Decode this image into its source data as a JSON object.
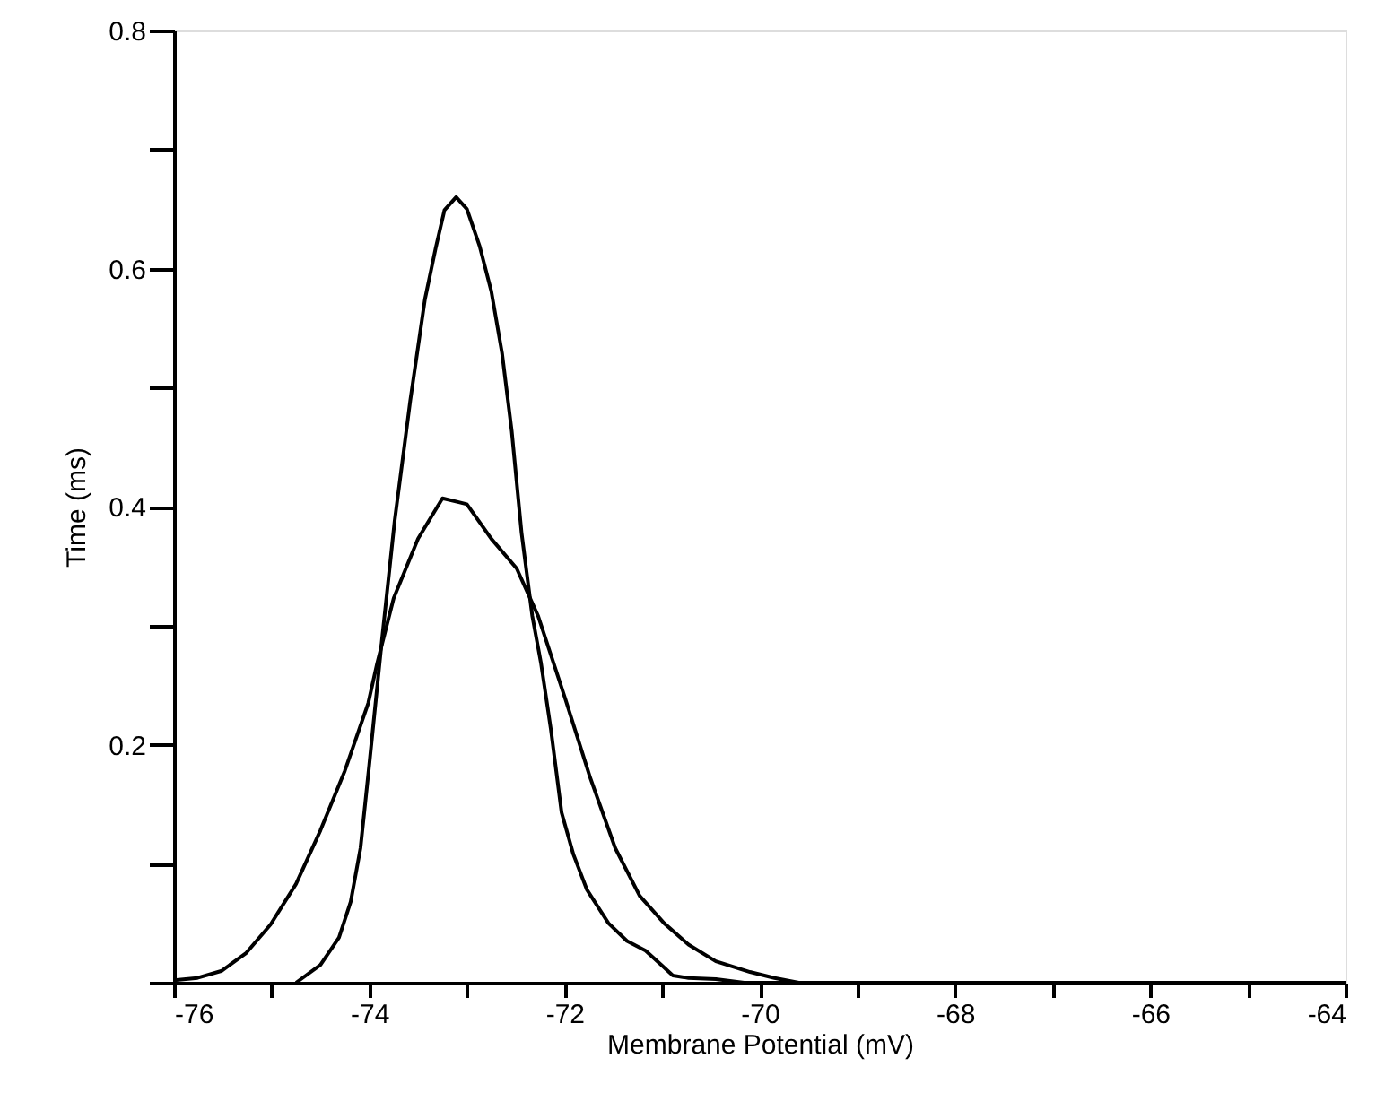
{
  "chart_data": {
    "type": "line",
    "xlabel": "Membrane Potential (mV)",
    "ylabel": "Time (ms)",
    "xlim": [
      -76,
      -64
    ],
    "ylim": [
      0,
      0.8
    ],
    "xticks": [
      -76,
      {
        "value": -75,
        "label": null
      },
      -74,
      {
        "value": -73,
        "label": null
      },
      -72,
      {
        "value": -71,
        "label": null
      },
      -70,
      {
        "value": -69,
        "label": null
      },
      -68,
      {
        "value": -67,
        "label": null
      },
      -66,
      {
        "value": -65,
        "label": null
      },
      -64
    ],
    "yticks": [
      {
        "value": 0,
        "label": null
      },
      {
        "value": 0.1,
        "label": null
      },
      0.2,
      {
        "value": 0.3,
        "label": null
      },
      0.4,
      {
        "value": 0.5,
        "label": null
      },
      0.6,
      {
        "value": 0.7,
        "label": null
      },
      0.8
    ],
    "series": [
      {
        "color": "#000000",
        "x": [
          -74.75,
          -74.5,
          -74.31,
          -74.19,
          -74.09,
          -74.0,
          -73.87,
          -73.74,
          -73.58,
          -73.43,
          -73.32,
          -73.23,
          -73.11,
          -73.0,
          -72.87,
          -72.75,
          -72.64,
          -72.54,
          -72.44,
          -72.33,
          -72.24,
          -72.14,
          -72.03,
          -71.91,
          -71.77,
          -71.55,
          -71.36,
          -71.17,
          -71.01,
          -70.89,
          -70.73,
          -70.45,
          -70.16,
          -68,
          -66,
          -64
        ],
        "values": [
          0,
          0.015,
          0.038,
          0.068,
          0.113,
          0.183,
          0.288,
          0.388,
          0.489,
          0.574,
          0.617,
          0.649,
          0.66,
          0.65,
          0.619,
          0.581,
          0.529,
          0.463,
          0.378,
          0.308,
          0.268,
          0.213,
          0.143,
          0.108,
          0.078,
          0.05,
          0.035,
          0.027,
          0.015,
          0.006,
          0.004,
          0.003,
          0,
          0,
          0,
          0
        ]
      },
      {
        "color": "#000000",
        "x": [
          -76,
          -75.76,
          -75.51,
          -75.26,
          -75.01,
          -74.75,
          -74.5,
          -74.25,
          -74.01,
          -73.92,
          -73.75,
          -73.5,
          -73.25,
          -73.0,
          -72.75,
          -72.49,
          -72.27,
          -71.99,
          -71.74,
          -71.48,
          -71.23,
          -70.98,
          -70.73,
          -70.45,
          -70.1,
          -69.85,
          -69.6,
          -68,
          -66,
          -64
        ],
        "values": [
          0.002,
          0.004,
          0.01,
          0.025,
          0.049,
          0.083,
          0.128,
          0.178,
          0.235,
          0.268,
          0.323,
          0.373,
          0.407,
          0.402,
          0.373,
          0.348,
          0.308,
          0.238,
          0.173,
          0.113,
          0.073,
          0.05,
          0.032,
          0.018,
          0.009,
          0.004,
          0,
          0,
          0,
          0
        ]
      }
    ]
  }
}
